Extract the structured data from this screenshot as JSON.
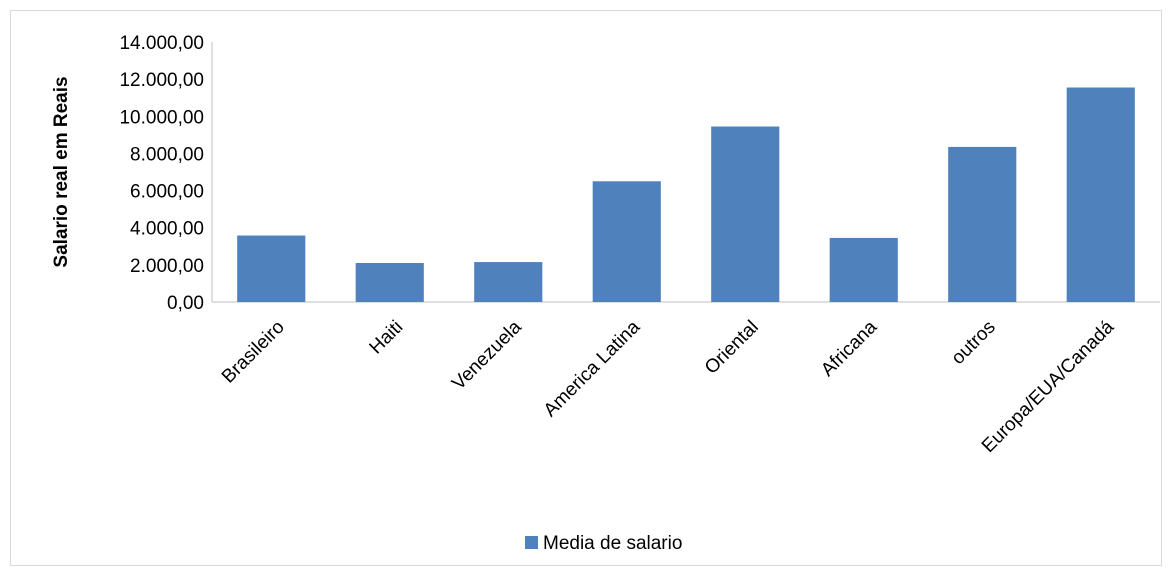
{
  "chart_data": {
    "type": "bar",
    "title": "",
    "xlabel": "",
    "ylabel": "Salario real em Reais",
    "categories": [
      "Brasileiro",
      "Haiti",
      "Venezuela",
      "America Latina",
      "Oriental",
      "Africana",
      "outros",
      "Europa/EUA/Canadá"
    ],
    "series": [
      {
        "name": "Media de salario",
        "values": [
          3580,
          2100,
          2150,
          6500,
          9450,
          3450,
          8350,
          11550
        ],
        "color": "#4f81bd"
      }
    ],
    "ylim": [
      0,
      14000
    ],
    "yticks": [
      0,
      2000,
      4000,
      6000,
      8000,
      10000,
      12000,
      14000
    ],
    "ytick_labels": [
      "0,00",
      "2.000,00",
      "4.000,00",
      "6.000,00",
      "8.000,00",
      "10.000,00",
      "12.000,00",
      "14.000,00"
    ],
    "grid": false,
    "legend_position": "bottom"
  }
}
